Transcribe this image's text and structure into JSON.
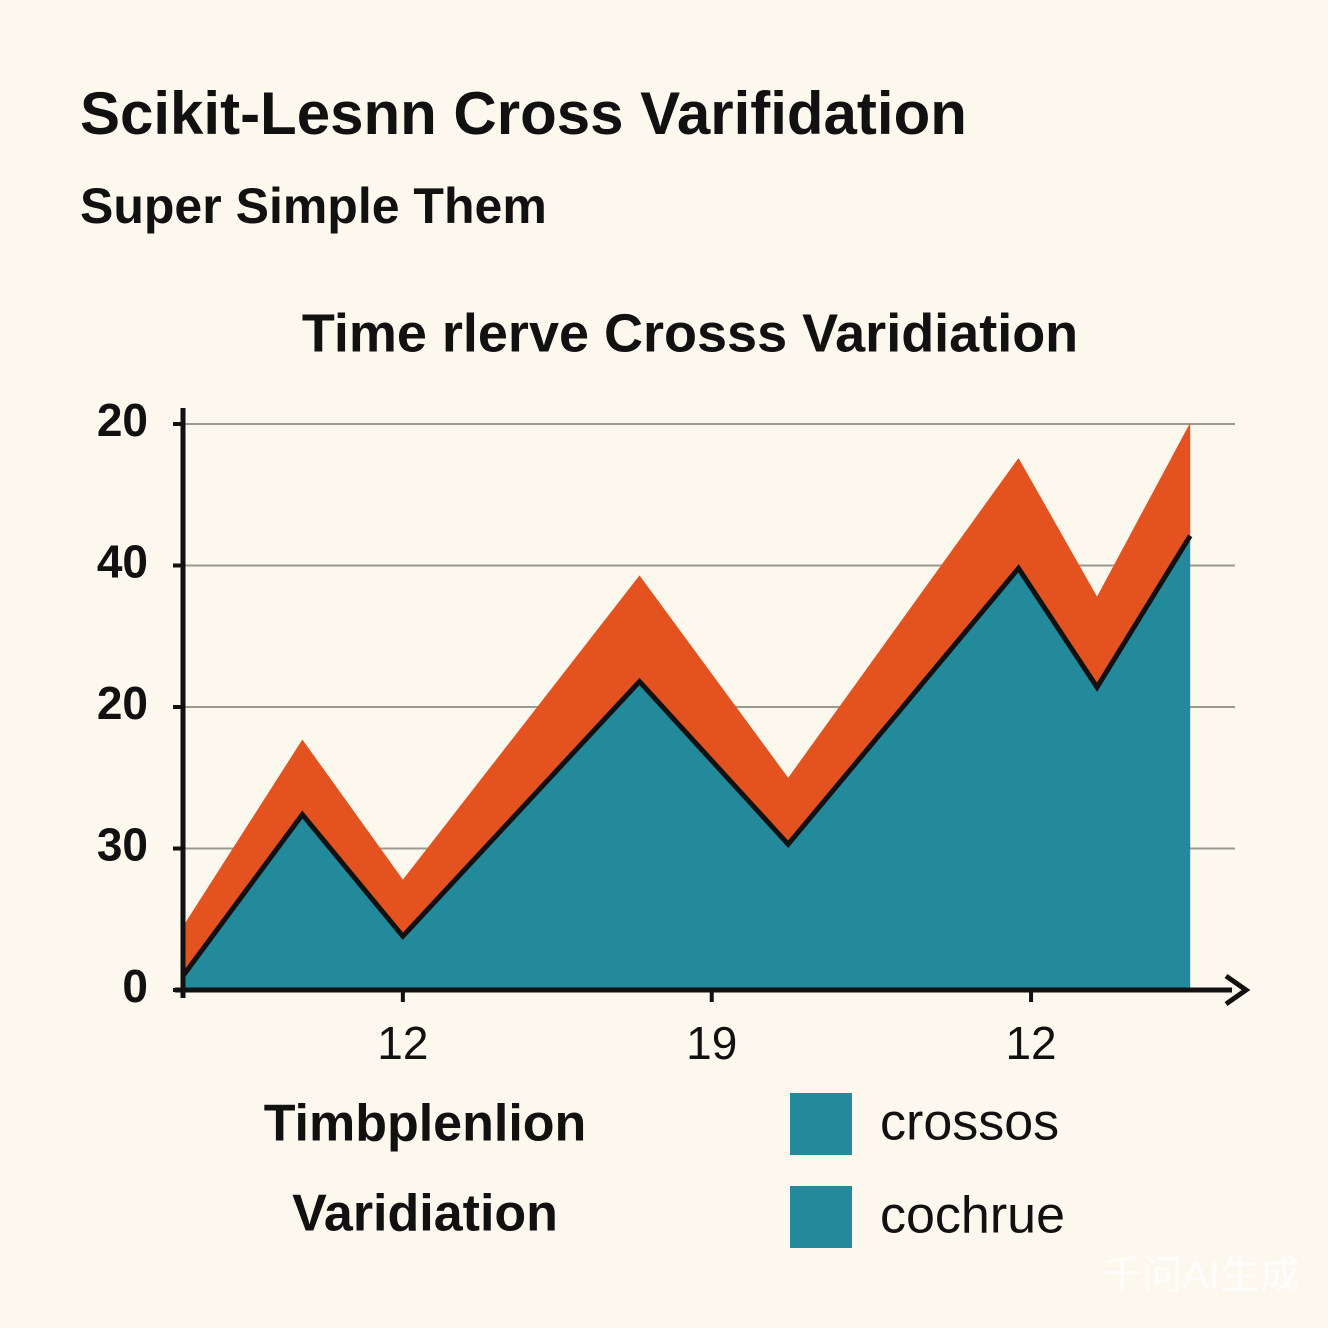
{
  "chart_data": {
    "type": "stacked_area",
    "title": "Scikit-Lesnn Cross Varifidation",
    "subtitle": "Super Simple Them",
    "chart_title": "Time rlerve Crosss Varidiation",
    "x": [
      0,
      11.4,
      21,
      43.6,
      57.8,
      79.8,
      87.3,
      96.2
    ],
    "xlim": [
      0,
      100
    ],
    "xticks": [
      {
        "value": 21,
        "label": "12"
      },
      {
        "value": 50.5,
        "label": "19"
      },
      {
        "value": 81,
        "label": "12"
      }
    ],
    "ylim": [
      0,
      40
    ],
    "yticks": [
      0,
      {
        "value": 10,
        "label": "30"
      },
      20,
      {
        "value": 30,
        "label": "40"
      },
      {
        "value": 40,
        "label": "20"
      }
    ],
    "grid": true,
    "series": [
      {
        "name": "crossos",
        "color": "#238a9c",
        "values": [
          1,
          12.4,
          3.8,
          21.8,
          10.3,
          29.8,
          21.4,
          32.1
        ]
      },
      {
        "name": "cochrue",
        "color": "#e4531f",
        "values": [
          3.5,
          5.3,
          4,
          7.5,
          4.7,
          7.8,
          6.4,
          8
        ]
      }
    ],
    "legend_swatch_color": "#238a9c",
    "annotations": [
      "Timbplenlion",
      "Varidiation"
    ],
    "watermark": "千问AI生成"
  }
}
